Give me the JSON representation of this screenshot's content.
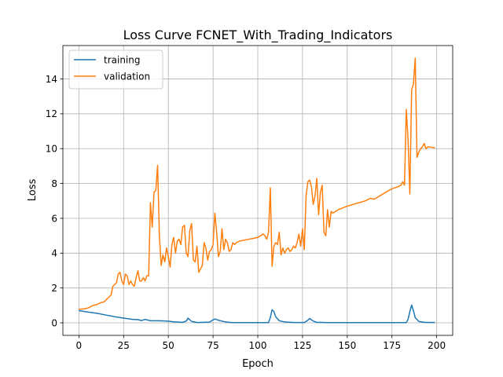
{
  "chart_data": {
    "type": "line",
    "title": "Loss Curve FCNET_With_Trading_Indicators",
    "xlabel": "Epoch",
    "ylabel": "Loss",
    "xlim": [
      -8.95,
      208.95
    ],
    "ylim": [
      -0.72,
      15.92
    ],
    "xticks": [
      0,
      25,
      50,
      75,
      100,
      125,
      150,
      175,
      200
    ],
    "yticks": [
      0,
      2,
      4,
      6,
      8,
      10,
      12,
      14
    ],
    "grid": true,
    "legend": "top-left",
    "series": [
      {
        "name": "training",
        "color": "#1f77b4",
        "points": [
          [
            0,
            0.7
          ],
          [
            5,
            0.62
          ],
          [
            10,
            0.55
          ],
          [
            15,
            0.45
          ],
          [
            20,
            0.35
          ],
          [
            25,
            0.27
          ],
          [
            30,
            0.2
          ],
          [
            33,
            0.18
          ],
          [
            35,
            0.13
          ],
          [
            37,
            0.2
          ],
          [
            40,
            0.12
          ],
          [
            45,
            0.12
          ],
          [
            50,
            0.1
          ],
          [
            53,
            0.06
          ],
          [
            58,
            0.03
          ],
          [
            60,
            0.1
          ],
          [
            61,
            0.27
          ],
          [
            63,
            0.08
          ],
          [
            66,
            0.02
          ],
          [
            73,
            0.04
          ],
          [
            75,
            0.17
          ],
          [
            76,
            0.22
          ],
          [
            78,
            0.15
          ],
          [
            82,
            0.05
          ],
          [
            86,
            0.01
          ],
          [
            100,
            0.01
          ],
          [
            106,
            0.01
          ],
          [
            107,
            0.3
          ],
          [
            108,
            0.75
          ],
          [
            109,
            0.65
          ],
          [
            110,
            0.35
          ],
          [
            112,
            0.12
          ],
          [
            115,
            0.05
          ],
          [
            120,
            0.02
          ],
          [
            126,
            0.02
          ],
          [
            128,
            0.15
          ],
          [
            129,
            0.25
          ],
          [
            131,
            0.1
          ],
          [
            133,
            0.03
          ],
          [
            140,
            0.01
          ],
          [
            150,
            0.01
          ],
          [
            170,
            0.01
          ],
          [
            183,
            0.01
          ],
          [
            184,
            0.2
          ],
          [
            185,
            0.65
          ],
          [
            186,
            1.02
          ],
          [
            187,
            0.7
          ],
          [
            188,
            0.3
          ],
          [
            190,
            0.08
          ],
          [
            193,
            0.03
          ],
          [
            199,
            0.02
          ]
        ]
      },
      {
        "name": "validation",
        "color": "#ff7f0e",
        "points": [
          [
            0,
            0.78
          ],
          [
            3,
            0.8
          ],
          [
            5,
            0.85
          ],
          [
            8,
            1.0
          ],
          [
            10,
            1.05
          ],
          [
            12,
            1.15
          ],
          [
            14,
            1.2
          ],
          [
            16,
            1.4
          ],
          [
            17,
            1.5
          ],
          [
            18,
            1.6
          ],
          [
            19,
            2.1
          ],
          [
            20,
            2.2
          ],
          [
            21,
            2.3
          ],
          [
            22,
            2.8
          ],
          [
            23,
            2.9
          ],
          [
            24,
            2.4
          ],
          [
            25,
            2.2
          ],
          [
            26,
            2.8
          ],
          [
            27,
            2.7
          ],
          [
            28,
            2.2
          ],
          [
            29,
            2.4
          ],
          [
            30,
            2.2
          ],
          [
            31,
            2.1
          ],
          [
            32,
            2.6
          ],
          [
            33,
            3.0
          ],
          [
            34,
            2.4
          ],
          [
            35,
            2.4
          ],
          [
            36,
            2.6
          ],
          [
            37,
            2.4
          ],
          [
            38,
            2.7
          ],
          [
            39,
            2.7
          ],
          [
            40,
            6.9
          ],
          [
            41,
            5.5
          ],
          [
            42,
            7.5
          ],
          [
            43,
            7.6
          ],
          [
            44,
            9.05
          ],
          [
            45,
            5.0
          ],
          [
            46,
            3.3
          ],
          [
            47,
            3.9
          ],
          [
            48,
            3.5
          ],
          [
            49,
            4.3
          ],
          [
            50,
            3.8
          ],
          [
            51,
            3.2
          ],
          [
            52,
            4.5
          ],
          [
            53,
            4.9
          ],
          [
            54,
            4.0
          ],
          [
            55,
            4.7
          ],
          [
            56,
            4.8
          ],
          [
            57,
            4.5
          ],
          [
            58,
            5.5
          ],
          [
            59,
            5.6
          ],
          [
            60,
            4.0
          ],
          [
            61,
            3.8
          ],
          [
            62,
            5.3
          ],
          [
            63,
            5.7
          ],
          [
            64,
            3.6
          ],
          [
            65,
            3.5
          ],
          [
            66,
            4.4
          ],
          [
            67,
            2.9
          ],
          [
            68,
            3.1
          ],
          [
            69,
            3.3
          ],
          [
            70,
            4.6
          ],
          [
            71,
            4.3
          ],
          [
            72,
            3.6
          ],
          [
            73,
            4.1
          ],
          [
            74,
            4.2
          ],
          [
            75,
            4.5
          ],
          [
            76,
            6.3
          ],
          [
            77,
            5.2
          ],
          [
            78,
            3.8
          ],
          [
            79,
            4.1
          ],
          [
            80,
            5.4
          ],
          [
            81,
            4.2
          ],
          [
            82,
            4.8
          ],
          [
            83,
            4.6
          ],
          [
            84,
            4.1
          ],
          [
            85,
            4.2
          ],
          [
            86,
            4.6
          ],
          [
            87,
            4.5
          ],
          [
            88,
            4.6
          ],
          [
            90,
            4.7
          ],
          [
            95,
            4.8
          ],
          [
            100,
            4.9
          ],
          [
            103,
            5.1
          ],
          [
            104,
            5.0
          ],
          [
            105,
            4.8
          ],
          [
            106,
            5.2
          ],
          [
            107,
            7.75
          ],
          [
            108,
            3.25
          ],
          [
            109,
            4.4
          ],
          [
            110,
            4.6
          ],
          [
            111,
            4.5
          ],
          [
            112,
            5.2
          ],
          [
            113,
            3.9
          ],
          [
            114,
            4.3
          ],
          [
            115,
            4.0
          ],
          [
            116,
            4.2
          ],
          [
            117,
            4.3
          ],
          [
            118,
            4.1
          ],
          [
            119,
            4.2
          ],
          [
            120,
            4.4
          ],
          [
            121,
            4.3
          ],
          [
            122,
            4.6
          ],
          [
            123,
            5.1
          ],
          [
            124,
            4.4
          ],
          [
            125,
            5.4
          ],
          [
            126,
            4.2
          ],
          [
            127,
            7.3
          ],
          [
            128,
            8.1
          ],
          [
            129,
            8.2
          ],
          [
            130,
            7.8
          ],
          [
            131,
            6.8
          ],
          [
            132,
            7.3
          ],
          [
            133,
            8.3
          ],
          [
            134,
            6.2
          ],
          [
            135,
            7.5
          ],
          [
            136,
            7.9
          ],
          [
            137,
            5.2
          ],
          [
            138,
            5.0
          ],
          [
            139,
            6.5
          ],
          [
            140,
            5.5
          ],
          [
            141,
            6.4
          ],
          [
            142,
            6.3
          ],
          [
            145,
            6.5
          ],
          [
            150,
            6.7
          ],
          [
            155,
            6.85
          ],
          [
            160,
            7.0
          ],
          [
            163,
            7.15
          ],
          [
            165,
            7.1
          ],
          [
            170,
            7.4
          ],
          [
            175,
            7.7
          ],
          [
            178,
            7.8
          ],
          [
            180,
            7.9
          ],
          [
            181,
            8.1
          ],
          [
            182,
            7.9
          ],
          [
            183,
            12.25
          ],
          [
            184,
            10.5
          ],
          [
            185,
            7.4
          ],
          [
            186,
            13.4
          ],
          [
            187,
            13.7
          ],
          [
            188,
            15.2
          ],
          [
            189,
            9.5
          ],
          [
            190,
            9.8
          ],
          [
            191,
            10.0
          ],
          [
            192,
            10.1
          ],
          [
            193,
            10.3
          ],
          [
            194,
            10.0
          ],
          [
            195,
            10.1
          ],
          [
            196,
            10.1
          ],
          [
            199,
            10.05
          ]
        ]
      }
    ]
  }
}
